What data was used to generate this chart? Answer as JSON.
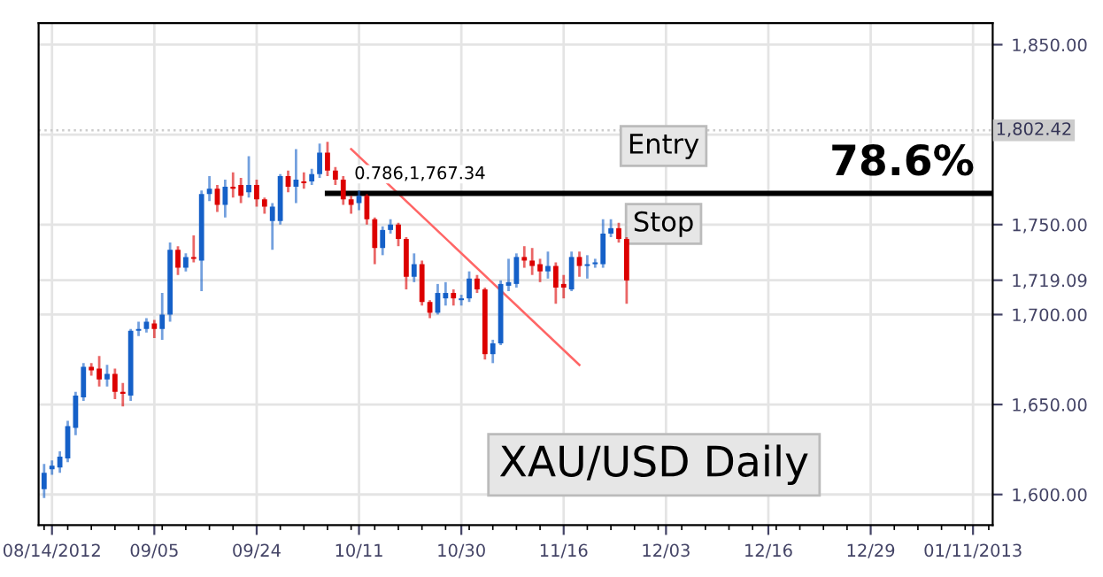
{
  "chart_data": {
    "type": "candlestick",
    "categories": [
      null,
      "08/14/2012",
      null,
      null,
      null,
      null,
      null,
      null,
      null,
      null,
      null,
      null,
      null,
      null,
      "09/05",
      null,
      null,
      null,
      null,
      null,
      null,
      null,
      null,
      null,
      null,
      null,
      null,
      "09/24",
      null,
      null,
      null,
      null,
      null,
      null,
      null,
      null,
      null,
      null,
      null,
      null,
      "10/11",
      null,
      null,
      null,
      null,
      null,
      null,
      null,
      null,
      null,
      null,
      null,
      null,
      "10/30",
      null,
      null,
      null,
      null,
      null,
      null,
      null,
      null,
      null,
      null,
      null,
      null,
      "11/16",
      null,
      null,
      null,
      null,
      null,
      null,
      null,
      null,
      null,
      null,
      null,
      null,
      "12/03",
      null,
      null,
      null,
      null,
      null,
      null,
      null,
      null,
      null,
      null,
      null,
      null,
      "12/16",
      null,
      null,
      null,
      null,
      null,
      null,
      null,
      null,
      null,
      null,
      null,
      null,
      "12/29",
      null,
      null,
      null,
      null,
      null,
      null,
      null,
      null,
      null,
      null,
      null,
      null,
      "01/11/2013",
      null,
      null
    ],
    "ohlc": [
      [
        1603,
        1617,
        1598,
        1612
      ],
      [
        1614,
        1619,
        1611,
        1616
      ],
      [
        1615,
        1624,
        1612,
        1621
      ],
      [
        1620,
        1641,
        1618,
        1638
      ],
      [
        1637,
        1657,
        1633,
        1655
      ],
      [
        1654,
        1673,
        1652,
        1671
      ],
      [
        1671,
        1673,
        1666,
        1669
      ],
      [
        1670,
        1677,
        1660,
        1664
      ],
      [
        1664,
        1672,
        1660,
        1667
      ],
      [
        1667,
        1670,
        1653,
        1657
      ],
      [
        1657,
        1662,
        1649,
        1656
      ],
      [
        1655,
        1692,
        1652,
        1691
      ],
      [
        1691,
        1696,
        1688,
        1692
      ],
      [
        1692,
        1698,
        1690,
        1696
      ],
      [
        1695,
        1697,
        1687,
        1692
      ],
      [
        1692,
        1712,
        1686,
        1700
      ],
      [
        1700,
        1740,
        1696,
        1736
      ],
      [
        1736,
        1738,
        1722,
        1726
      ],
      [
        1726,
        1734,
        1724,
        1732
      ],
      [
        1732,
        1744,
        1729,
        1731
      ],
      [
        1730,
        1769,
        1713,
        1767
      ],
      [
        1767,
        1777,
        1763,
        1770
      ],
      [
        1770,
        1772,
        1757,
        1761
      ],
      [
        1761,
        1775,
        1754,
        1771
      ],
      [
        1771,
        1779,
        1765,
        1770
      ],
      [
        1772,
        1776,
        1762,
        1766
      ],
      [
        1768,
        1788,
        1765,
        1772
      ],
      [
        1772,
        1775,
        1760,
        1764
      ],
      [
        1764,
        1765,
        1756,
        1760
      ],
      [
        1752,
        1762,
        1736,
        1760
      ],
      [
        1752,
        1778,
        1750,
        1777
      ],
      [
        1777,
        1780,
        1768,
        1771
      ],
      [
        1771,
        1792,
        1762,
        1775
      ],
      [
        1774,
        1779,
        1770,
        1773
      ],
      [
        1774,
        1781,
        1772,
        1778
      ],
      [
        1778,
        1795,
        1776,
        1790
      ],
      [
        1790,
        1796,
        1777,
        1780
      ],
      [
        1780,
        1782,
        1772,
        1775
      ],
      [
        1775,
        1777,
        1761,
        1764
      ],
      [
        1764,
        1766,
        1756,
        1761
      ],
      [
        1762,
        1769,
        1758,
        1766
      ],
      [
        1766,
        1767,
        1750,
        1753
      ],
      [
        1753,
        1754,
        1728,
        1737
      ],
      [
        1737,
        1749,
        1733,
        1747
      ],
      [
        1747,
        1753,
        1745,
        1750
      ],
      [
        1750,
        1751,
        1738,
        1742
      ],
      [
        1742,
        1743,
        1714,
        1721
      ],
      [
        1721,
        1734,
        1718,
        1728
      ],
      [
        1728,
        1730,
        1705,
        1707
      ],
      [
        1707,
        1708,
        1698,
        1701
      ],
      [
        1701,
        1717,
        1700,
        1712
      ],
      [
        1709,
        1718,
        1705,
        1712
      ],
      [
        1712,
        1714,
        1705,
        1709
      ],
      [
        1708,
        1711,
        1705,
        1709
      ],
      [
        1709,
        1724,
        1707,
        1720
      ],
      [
        1720,
        1722,
        1712,
        1714
      ],
      [
        1714,
        1715,
        1675,
        1678
      ],
      [
        1678,
        1686,
        1673,
        1684
      ],
      [
        1684,
        1719,
        1683,
        1717
      ],
      [
        1716,
        1731,
        1713,
        1718
      ],
      [
        1717,
        1734,
        1715,
        1732
      ],
      [
        1732,
        1738,
        1726,
        1730
      ],
      [
        1730,
        1737,
        1722,
        1727
      ],
      [
        1728,
        1731,
        1718,
        1724
      ],
      [
        1724,
        1735,
        1720,
        1727
      ],
      [
        1727,
        1729,
        1706,
        1715
      ],
      [
        1717,
        1722,
        1709,
        1715
      ],
      [
        1714,
        1735,
        1713,
        1732
      ],
      [
        1732,
        1735,
        1721,
        1727
      ],
      [
        1727,
        1733,
        1720,
        1728
      ],
      [
        1728,
        1731,
        1726,
        1729
      ],
      [
        1728,
        1753,
        1726,
        1745
      ],
      [
        1745,
        1753,
        1743,
        1748
      ],
      [
        1748,
        1751,
        1740,
        1742
      ],
      [
        1742,
        1743,
        1706,
        1719
      ],
      null,
      null,
      null,
      null,
      null,
      null,
      null,
      null,
      null,
      null,
      null,
      null,
      null,
      null,
      null,
      null,
      null,
      null,
      null,
      null,
      null,
      null,
      null,
      null,
      null,
      null,
      null,
      null,
      null,
      null,
      null,
      null,
      null,
      null,
      null,
      null,
      null,
      null,
      null,
      null,
      null,
      null,
      null,
      null,
      null,
      null
    ],
    "colors": [
      "#1560c8",
      "#1560c8",
      "#1560c8",
      "#1560c8",
      "#1560c8",
      "#1560c8",
      "#dc0000",
      "#dc0000",
      "#1560c8",
      "#dc0000",
      "#dc0000",
      "#1560c8",
      "#1560c8",
      "#1560c8",
      "#dc0000",
      "#1560c8",
      "#1560c8",
      "#dc0000",
      "#1560c8",
      "#dc0000",
      "#1560c8",
      "#1560c8",
      "#dc0000",
      "#1560c8",
      "#dc0000",
      "#dc0000",
      "#1560c8",
      "#dc0000",
      "#dc0000",
      "#1560c8",
      "#1560c8",
      "#dc0000",
      "#1560c8",
      "#dc0000",
      "#1560c8",
      "#1560c8",
      "#dc0000",
      "#dc0000",
      "#dc0000",
      "#dc0000",
      "#1560c8",
      "#dc0000",
      "#dc0000",
      "#1560c8",
      "#1560c8",
      "#dc0000",
      "#dc0000",
      "#1560c8",
      "#dc0000",
      "#dc0000",
      "#1560c8",
      "#1560c8",
      "#dc0000",
      "#1560c8",
      "#1560c8",
      "#dc0000",
      "#dc0000",
      "#1560c8",
      "#1560c8",
      "#1560c8",
      "#1560c8",
      "#dc0000",
      "#dc0000",
      "#dc0000",
      "#1560c8",
      "#dc0000",
      "#dc0000",
      "#1560c8",
      "#dc0000",
      "#1560c8",
      "#1560c8",
      "#1560c8",
      "#1560c8",
      "#dc0000",
      "#dc0000",
      null,
      null,
      null,
      null,
      null,
      null,
      null,
      null,
      null,
      null,
      null,
      null,
      null,
      null,
      null,
      null,
      null,
      null,
      null,
      null,
      null,
      null,
      null,
      null,
      null,
      null,
      null,
      null,
      null,
      null,
      null,
      null,
      null,
      null,
      null,
      null,
      null,
      null,
      null,
      null,
      null,
      null,
      null,
      null,
      null,
      null
    ],
    "series": [
      {
        "type": "line",
        "values": [
          null,
          null,
          null,
          null,
          null,
          null,
          null,
          null,
          null,
          null,
          null,
          null,
          null,
          null,
          null,
          null,
          null,
          null,
          null,
          null,
          null,
          null,
          null,
          null,
          null,
          null,
          null,
          null,
          null,
          null,
          null,
          null,
          null,
          null,
          null,
          null,
          null,
          null,
          null,
          1792,
          null,
          null,
          null,
          null,
          null,
          null,
          null,
          null,
          null,
          null,
          null,
          null,
          null,
          null,
          null,
          null,
          null,
          null,
          null,
          null,
          null,
          null,
          null,
          null,
          null,
          null,
          null,
          null,
          1672,
          null,
          null,
          null,
          null,
          null,
          null,
          null,
          null,
          null,
          null,
          null,
          null,
          null,
          null,
          null,
          null,
          null,
          null,
          null,
          null,
          null,
          null,
          null,
          null,
          null,
          null,
          null,
          null,
          null,
          null,
          null,
          null,
          null,
          null,
          null,
          null,
          null,
          null,
          null,
          null,
          null,
          null,
          null,
          null,
          null,
          null,
          null,
          null,
          null,
          null,
          null,
          null
        ],
        "color": "#ff6666"
      }
    ],
    "ylim": [
      1583,
      1862
    ],
    "yticks": [
      {
        "value": 1600,
        "label": "1,600.00"
      },
      {
        "value": 1650,
        "label": "1,650.00"
      },
      {
        "value": 1700,
        "label": "1,700.00"
      },
      {
        "value": 1719.09,
        "label": "1,719.09"
      },
      {
        "value": 1750,
        "label": "1,750.00"
      },
      {
        "value": 1800,
        "label": null
      },
      {
        "value": 1850,
        "label": "1,850.00"
      }
    ],
    "ref_lines": [
      {
        "axis": "y",
        "value": 1802.42,
        "label": "1,802.42",
        "color": "#cccccc",
        "line_style": "dotted"
      },
      {
        "axis": "y",
        "value": 1767.34,
        "label": "0.786,1,767.34",
        "color": "#000000",
        "line_style": "solid"
      }
    ],
    "annotations": [
      "Entry",
      "Stop",
      "78.6%",
      "XAU/USD Daily"
    ],
    "grid": true
  }
}
